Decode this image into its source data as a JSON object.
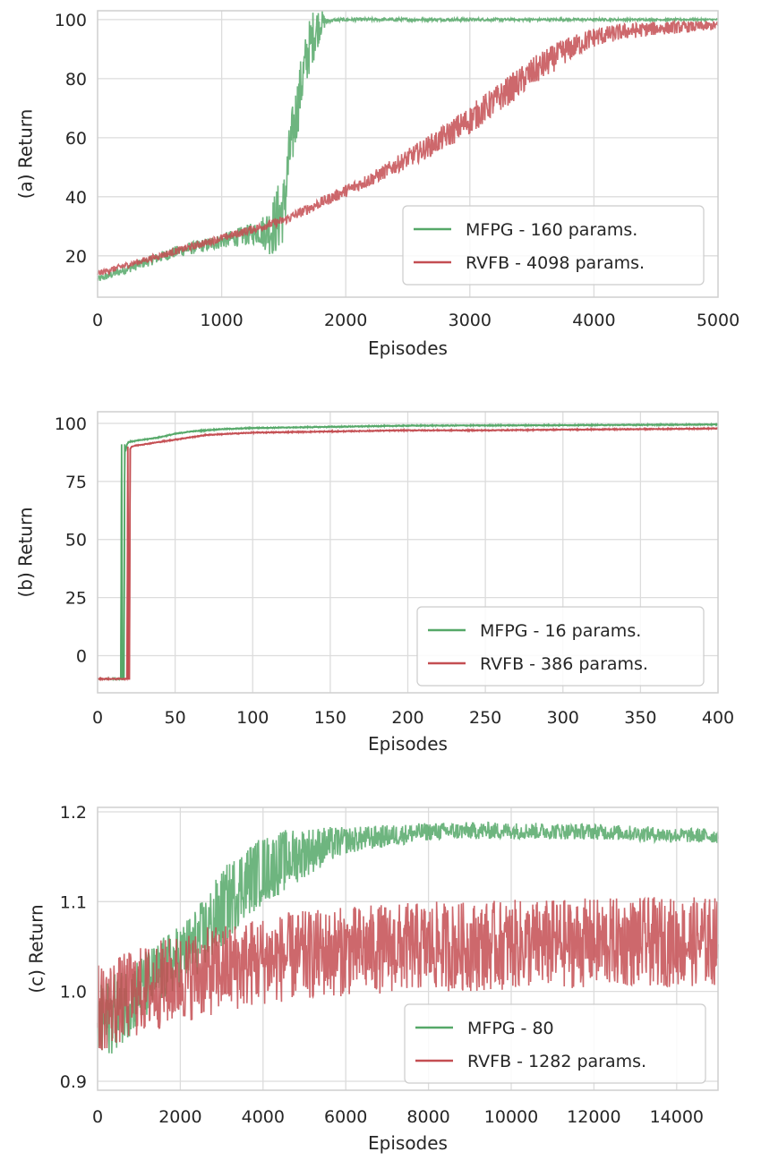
{
  "colors": {
    "mfpg": "#55a868",
    "rvfb": "#c44e52",
    "grid": "#dcdcdc",
    "frame": "#cfcfcf",
    "bg": "#ffffff"
  },
  "chart_data": [
    {
      "type": "line",
      "xlabel": "Episodes",
      "ylabel": "(a) Return",
      "xlim": [
        0,
        5000
      ],
      "ylim": [
        6,
        103
      ],
      "xticks": [
        0,
        1000,
        2000,
        3000,
        4000,
        5000
      ],
      "yticks": [
        20,
        40,
        60,
        80,
        100
      ],
      "grid": true,
      "legend": "bottom-right",
      "series": [
        {
          "name": "MFPG - 160 params.",
          "color": "#55a868",
          "noise": [
            [
              0,
              1.2
            ],
            [
              1000,
              2.5
            ],
            [
              1300,
              4
            ],
            [
              1450,
              12
            ],
            [
              1750,
              9
            ],
            [
              1850,
              0.6
            ],
            [
              5000,
              0.3
            ]
          ],
          "x": [
            0,
            200,
            400,
            600,
            800,
            1000,
            1200,
            1400,
            1500,
            1550,
            1600,
            1650,
            1700,
            1750,
            1800,
            1850,
            1900,
            2000,
            3000,
            4000,
            5000
          ],
          "y": [
            12,
            15,
            18,
            21,
            23,
            25,
            27,
            29,
            36,
            55,
            68,
            80,
            90,
            96,
            99,
            99.5,
            99.8,
            100,
            100,
            100,
            100
          ]
        },
        {
          "name": "RVFB - 4098 params.",
          "color": "#c44e52",
          "noise": [
            [
              0,
              1
            ],
            [
              1500,
              1.5
            ],
            [
              2300,
              2.5
            ],
            [
              3000,
              5
            ],
            [
              3600,
              5
            ],
            [
              4100,
              3
            ],
            [
              5000,
              1.5
            ]
          ],
          "x": [
            0,
            250,
            500,
            750,
            1000,
            1250,
            1500,
            1750,
            2000,
            2250,
            2500,
            2750,
            3000,
            3250,
            3500,
            3750,
            4000,
            4250,
            4500,
            4750,
            5000
          ],
          "y": [
            14,
            17,
            20,
            23,
            26,
            29,
            32,
            37,
            42,
            47,
            53,
            59,
            66,
            74,
            82,
            89,
            94,
            96,
            97,
            97.5,
            98
          ]
        }
      ]
    },
    {
      "type": "line",
      "xlabel": "Episodes",
      "ylabel": "(b) Return",
      "xlim": [
        0,
        400
      ],
      "ylim": [
        -16,
        105
      ],
      "xticks": [
        0,
        50,
        100,
        150,
        200,
        250,
        300,
        350,
        400
      ],
      "yticks": [
        0,
        25,
        50,
        75,
        100
      ],
      "grid": true,
      "legend": "bottom-right",
      "series": [
        {
          "name": "MFPG - 16 params.",
          "color": "#55a868",
          "noise": [
            [
              0,
              0.3
            ],
            [
              400,
              0.3
            ]
          ],
          "x": [
            0,
            15,
            15.5,
            16,
            16.5,
            17,
            17.5,
            18,
            19,
            20,
            30,
            40,
            50,
            60,
            80,
            100,
            150,
            200,
            300,
            400
          ],
          "y": [
            -10,
            -10,
            91,
            -10,
            -10,
            -10,
            91,
            88,
            91,
            92,
            93,
            94,
            95.5,
            96.5,
            97.5,
            98,
            98.5,
            99,
            99.2,
            99.5
          ]
        },
        {
          "name": "RVFB - 386 params.",
          "color": "#c44e52",
          "noise": [
            [
              0,
              0.3
            ],
            [
              400,
              0.3
            ]
          ],
          "x": [
            0,
            19,
            19.5,
            20,
            20.5,
            21,
            22,
            25,
            30,
            40,
            50,
            70,
            100,
            150,
            200,
            250,
            300,
            350,
            400
          ],
          "y": [
            -10,
            -10,
            90,
            -10,
            -10,
            89,
            90,
            90.5,
            91,
            92,
            93,
            95,
            96,
            96.5,
            97,
            97,
            97.3,
            97.5,
            97.8
          ]
        }
      ]
    },
    {
      "type": "line",
      "xlabel": "Episodes",
      "ylabel": "(c) Return",
      "xlim": [
        0,
        15000
      ],
      "ylim": [
        0.89,
        1.205
      ],
      "xticks": [
        0,
        2000,
        4000,
        6000,
        8000,
        10000,
        12000,
        14000
      ],
      "yticks": [
        0.9,
        1.0,
        1.1,
        1.2
      ],
      "grid": true,
      "legend": "bottom-right",
      "series": [
        {
          "name": "MFPG - 80",
          "color": "#55a868",
          "noise": [
            [
              0,
              0.045
            ],
            [
              2000,
              0.035
            ],
            [
              3000,
              0.045
            ],
            [
              4500,
              0.035
            ],
            [
              6000,
              0.015
            ],
            [
              8000,
              0.01
            ],
            [
              15000,
              0.008
            ]
          ],
          "x": [
            0,
            500,
            1000,
            1500,
            2000,
            2500,
            3000,
            3500,
            4000,
            4500,
            5000,
            5500,
            6000,
            7000,
            8000,
            9000,
            10000,
            12000,
            14000,
            15000
          ],
          "y": [
            0.96,
            0.98,
            1.0,
            1.02,
            1.04,
            1.06,
            1.09,
            1.12,
            1.135,
            1.145,
            1.155,
            1.162,
            1.168,
            1.173,
            1.178,
            1.179,
            1.179,
            1.178,
            1.174,
            1.173
          ]
        },
        {
          "name": "RVFB - 1282 params.",
          "color": "#c44e52",
          "noise": [
            [
              0,
              0.05
            ],
            [
              2000,
              0.05
            ],
            [
              4000,
              0.05
            ],
            [
              15000,
              0.05
            ]
          ],
          "x": [
            0,
            500,
            1000,
            2000,
            3000,
            4000,
            5000,
            6000,
            7000,
            8000,
            9000,
            10000,
            11000,
            12000,
            13000,
            14000,
            15000
          ],
          "y": [
            0.98,
            0.99,
            1.0,
            1.015,
            1.025,
            1.035,
            1.04,
            1.045,
            1.048,
            1.05,
            1.05,
            1.052,
            1.053,
            1.054,
            1.055,
            1.055,
            1.056
          ]
        }
      ]
    }
  ]
}
